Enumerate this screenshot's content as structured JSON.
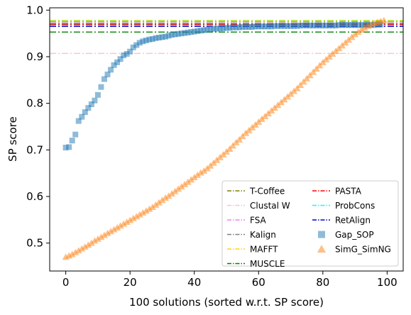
{
  "chart_data": {
    "type": "scatter",
    "title": "",
    "xlabel": "100 solutions (sorted w.r.t. SP score)",
    "ylabel": "SP score",
    "xlim": [
      -5,
      105
    ],
    "ylim": [
      0.44,
      1.005
    ],
    "x_ticks": [
      0,
      20,
      40,
      60,
      80,
      100
    ],
    "y_ticks": [
      0.5,
      0.6,
      0.7,
      0.8,
      0.9,
      1.0
    ],
    "x_tick_labels": [
      "0",
      "20",
      "40",
      "60",
      "80",
      "100"
    ],
    "y_tick_labels": [
      "0.5",
      "0.6",
      "0.7",
      "0.8",
      "0.9",
      "1.0"
    ],
    "grid": false,
    "legend_position": "lower-right",
    "reference_lines": [
      {
        "name": "T-Coffee",
        "y": 0.975,
        "color": "#808000",
        "dash": "dashdot"
      },
      {
        "name": "Clustal W",
        "y": 0.907,
        "color": "#ffc0cb",
        "dash": "dashdot"
      },
      {
        "name": "FSA",
        "y": 0.972,
        "color": "#ee82ee",
        "dash": "dashdot"
      },
      {
        "name": "Kalign",
        "y": 0.968,
        "color": "#808080",
        "dash": "dashdot"
      },
      {
        "name": "MAFFT",
        "y": 0.978,
        "color": "#ffd700",
        "dash": "dashdot"
      },
      {
        "name": "MUSCLE",
        "y": 0.953,
        "color": "#008000",
        "dash": "dashdot"
      },
      {
        "name": "PASTA",
        "y": 0.97,
        "color": "#ff0000",
        "dash": "dashdot"
      },
      {
        "name": "ProbCons",
        "y": 0.976,
        "color": "#00ffff",
        "dash": "dashdot"
      },
      {
        "name": "RetAlign",
        "y": 0.965,
        "color": "#0000cd",
        "dash": "dashdot"
      }
    ],
    "series": [
      {
        "name": "Gap_SOP",
        "marker": "square",
        "color": "#1f77b4",
        "x": [
          0,
          1,
          2,
          3,
          4,
          5,
          6,
          7,
          8,
          9,
          10,
          11,
          12,
          13,
          14,
          15,
          16,
          17,
          18,
          19,
          20,
          21,
          22,
          23,
          24,
          25,
          26,
          27,
          28,
          29,
          30,
          31,
          32,
          33,
          34,
          35,
          36,
          37,
          38,
          39,
          40,
          41,
          42,
          43,
          44,
          45,
          46,
          47,
          48,
          49,
          50,
          51,
          52,
          53,
          54,
          55,
          56,
          57,
          58,
          59,
          60,
          61,
          62,
          63,
          64,
          65,
          66,
          67,
          68,
          69,
          70,
          71,
          72,
          73,
          74,
          75,
          76,
          77,
          78,
          79,
          80,
          81,
          82,
          83,
          84,
          85,
          86,
          87,
          88,
          89,
          90,
          91,
          92,
          93,
          94,
          95,
          96,
          97,
          98
        ],
        "y": [
          0.705,
          0.706,
          0.72,
          0.733,
          0.762,
          0.771,
          0.781,
          0.79,
          0.798,
          0.806,
          0.818,
          0.835,
          0.852,
          0.862,
          0.872,
          0.882,
          0.888,
          0.895,
          0.903,
          0.906,
          0.911,
          0.92,
          0.925,
          0.93,
          0.933,
          0.935,
          0.937,
          0.938,
          0.94,
          0.941,
          0.942,
          0.943,
          0.945,
          0.947,
          0.948,
          0.949,
          0.95,
          0.951,
          0.952,
          0.953,
          0.954,
          0.955,
          0.956,
          0.957,
          0.958,
          0.959,
          0.96,
          0.96,
          0.961,
          0.961,
          0.962,
          0.962,
          0.963,
          0.963,
          0.963,
          0.964,
          0.964,
          0.964,
          0.964,
          0.965,
          0.965,
          0.965,
          0.965,
          0.965,
          0.965,
          0.966,
          0.966,
          0.966,
          0.966,
          0.966,
          0.966,
          0.966,
          0.966,
          0.967,
          0.967,
          0.967,
          0.967,
          0.967,
          0.967,
          0.967,
          0.967,
          0.967,
          0.967,
          0.967,
          0.967,
          0.968,
          0.968,
          0.968,
          0.968,
          0.968,
          0.968,
          0.968,
          0.968,
          0.968,
          0.968,
          0.968,
          0.968,
          0.969,
          0.969
        ]
      },
      {
        "name": "SimG_SimNG",
        "marker": "triangle-up",
        "color": "#ff7f0e",
        "x": [
          0,
          1,
          2,
          3,
          4,
          5,
          6,
          7,
          8,
          9,
          10,
          11,
          12,
          13,
          14,
          15,
          16,
          17,
          18,
          19,
          20,
          21,
          22,
          23,
          24,
          25,
          26,
          27,
          28,
          29,
          30,
          31,
          32,
          33,
          34,
          35,
          36,
          37,
          38,
          39,
          40,
          41,
          42,
          43,
          44,
          45,
          46,
          47,
          48,
          49,
          50,
          51,
          52,
          53,
          54,
          55,
          56,
          57,
          58,
          59,
          60,
          61,
          62,
          63,
          64,
          65,
          66,
          67,
          68,
          69,
          70,
          71,
          72,
          73,
          74,
          75,
          76,
          77,
          78,
          79,
          80,
          81,
          82,
          83,
          84,
          85,
          86,
          87,
          88,
          89,
          90,
          91,
          92,
          93,
          94,
          95,
          96,
          97,
          98,
          99
        ],
        "y": [
          0.47,
          0.473,
          0.476,
          0.48,
          0.484,
          0.488,
          0.492,
          0.496,
          0.5,
          0.505,
          0.509,
          0.513,
          0.517,
          0.521,
          0.525,
          0.529,
          0.533,
          0.537,
          0.541,
          0.545,
          0.549,
          0.553,
          0.557,
          0.561,
          0.565,
          0.569,
          0.573,
          0.577,
          0.582,
          0.587,
          0.592,
          0.597,
          0.601,
          0.606,
          0.611,
          0.616,
          0.621,
          0.626,
          0.631,
          0.636,
          0.641,
          0.646,
          0.651,
          0.655,
          0.66,
          0.666,
          0.672,
          0.678,
          0.684,
          0.69,
          0.696,
          0.702,
          0.709,
          0.716,
          0.722,
          0.729,
          0.736,
          0.742,
          0.748,
          0.754,
          0.76,
          0.766,
          0.772,
          0.778,
          0.784,
          0.79,
          0.796,
          0.802,
          0.808,
          0.814,
          0.82,
          0.826,
          0.832,
          0.839,
          0.846,
          0.853,
          0.86,
          0.867,
          0.874,
          0.881,
          0.888,
          0.894,
          0.9,
          0.906,
          0.912,
          0.918,
          0.924,
          0.93,
          0.936,
          0.942,
          0.948,
          0.953,
          0.958,
          0.962,
          0.966,
          0.969,
          0.972,
          0.974,
          0.976,
          0.978
        ]
      }
    ]
  }
}
